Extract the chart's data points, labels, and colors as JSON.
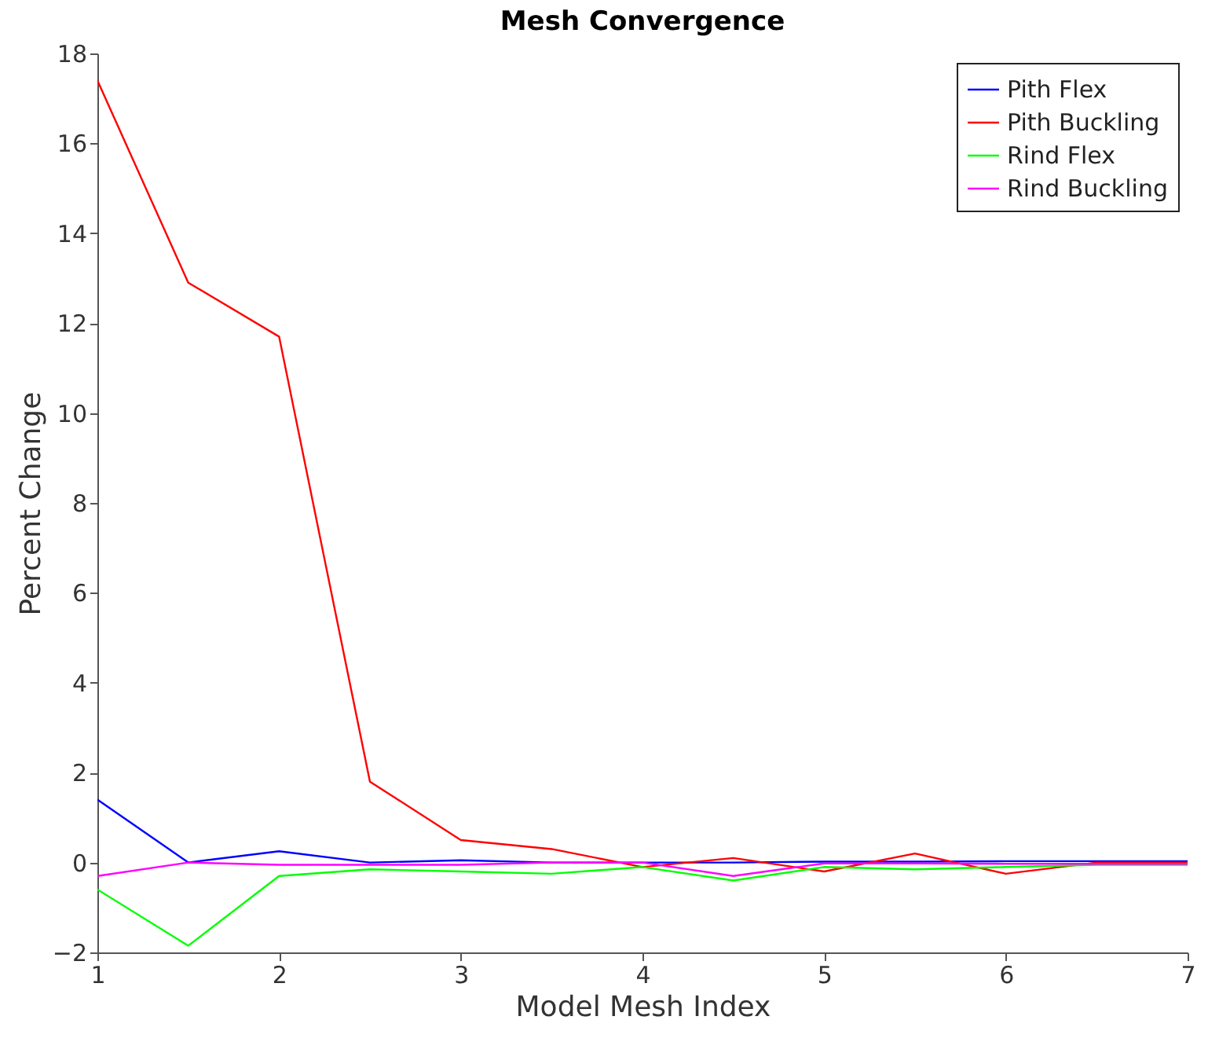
{
  "chart_data": {
    "type": "line",
    "title": "Mesh Convergence",
    "xlabel": "Model Mesh Index",
    "ylabel": "Percent Change",
    "x": [
      1,
      1.5,
      2,
      2.5,
      3,
      3.5,
      4,
      4.5,
      5,
      5.5,
      6,
      6.5,
      7
    ],
    "series": [
      {
        "name": "Pith Flex",
        "color": "#0000ff",
        "values": [
          1.4,
          0,
          0.25,
          0,
          0.05,
          0,
          0,
          0,
          0.02,
          0.02,
          0.03,
          0.03,
          0.03
        ]
      },
      {
        "name": "Pith Buckling",
        "color": "#ff0000",
        "values": [
          17.4,
          12.9,
          11.7,
          1.8,
          0.5,
          0.3,
          -0.1,
          0.1,
          -0.2,
          0.2,
          -0.25,
          0,
          0
        ]
      },
      {
        "name": "Rind Flex",
        "color": "#00ff00",
        "values": [
          -0.6,
          -1.85,
          -0.3,
          -0.15,
          -0.2,
          -0.25,
          -0.1,
          -0.4,
          -0.1,
          -0.15,
          -0.1,
          -0.05,
          -0.05
        ]
      },
      {
        "name": "Rind Buckling",
        "color": "#ff00ff",
        "values": [
          -0.3,
          0,
          -0.05,
          -0.05,
          -0.05,
          0,
          0,
          -0.3,
          -0.02,
          -0.02,
          -0.03,
          -0.03,
          -0.03
        ]
      }
    ],
    "xlim": [
      1,
      7
    ],
    "xticks": [
      1,
      2,
      3,
      4,
      5,
      6,
      7
    ],
    "ylim": [
      -2,
      18
    ],
    "yticks": [
      -2,
      0,
      2,
      4,
      6,
      8,
      10,
      12,
      14,
      16,
      18
    ],
    "grid": false,
    "legend": "top right",
    "marker": "none",
    "line_style": "solid"
  }
}
